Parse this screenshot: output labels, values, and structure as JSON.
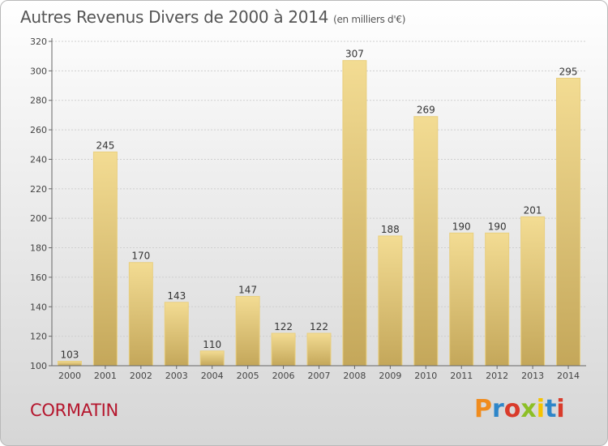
{
  "header": {
    "title": "Autres Revenus Divers de 2000 à 2014",
    "unit": "(en milliers d'€)"
  },
  "commune": "CORMATIN",
  "logo": {
    "text": "Proxiti",
    "letters": [
      {
        "ch": "P",
        "color": "#f08c1e"
      },
      {
        "ch": "r",
        "color": "#2e86c9"
      },
      {
        "ch": "o",
        "color": "#d93b2b"
      },
      {
        "ch": "x",
        "color": "#8cbf26"
      },
      {
        "ch": "i",
        "color": "#f5c300"
      },
      {
        "ch": "t",
        "color": "#2e86c9"
      },
      {
        "ch": "i",
        "color": "#d93b2b"
      }
    ]
  },
  "colors": {
    "bar_light": "#f3dc93",
    "bar_dark": "#c4a75a",
    "grid": "#cfcfcf",
    "axis": "#666666"
  },
  "chart_data": {
    "type": "bar",
    "categories": [
      "2000",
      "2001",
      "2002",
      "2003",
      "2004",
      "2005",
      "2006",
      "2007",
      "2008",
      "2009",
      "2010",
      "2011",
      "2012",
      "2013",
      "2014"
    ],
    "values": [
      103,
      245,
      170,
      143,
      110,
      147,
      122,
      122,
      307,
      188,
      269,
      190,
      190,
      201,
      295
    ],
    "title": "Autres Revenus Divers de 2000 à 2014",
    "ylim": [
      100,
      320
    ],
    "yticks": [
      100,
      120,
      140,
      160,
      180,
      200,
      220,
      240,
      260,
      280,
      300,
      320
    ],
    "grid": true
  }
}
